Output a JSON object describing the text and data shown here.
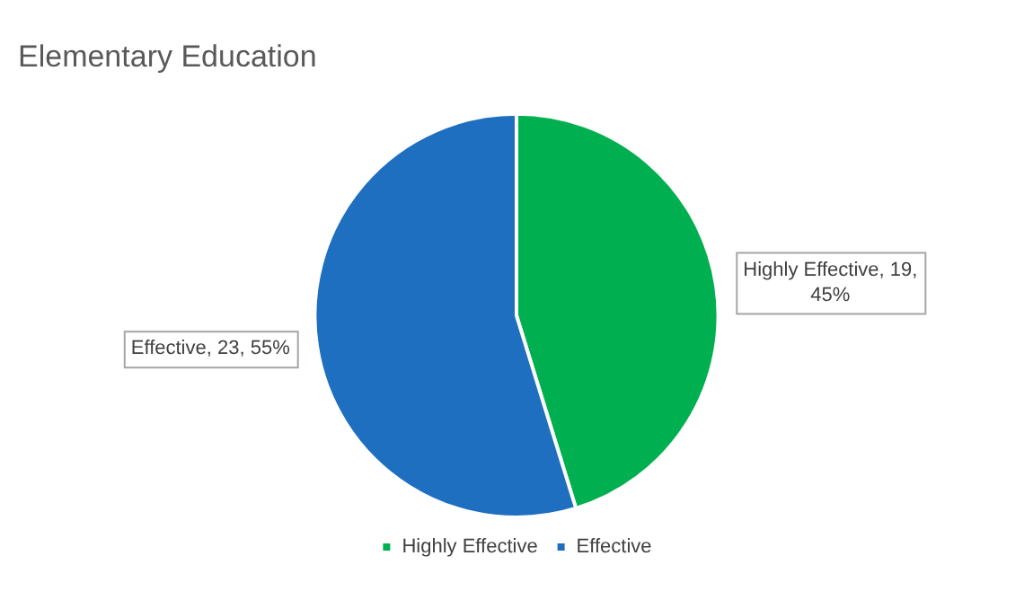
{
  "chart_data": {
    "type": "pie",
    "title": "Elementary Education",
    "categories": [
      "Highly Effective",
      "Effective"
    ],
    "values": [
      19,
      23
    ],
    "colors": [
      "#00b050",
      "#1f6fc1"
    ],
    "value_labels": [
      "Highly Effective, 19, 45%",
      "Effective, 23, 55%"
    ],
    "legend": "bottom"
  }
}
